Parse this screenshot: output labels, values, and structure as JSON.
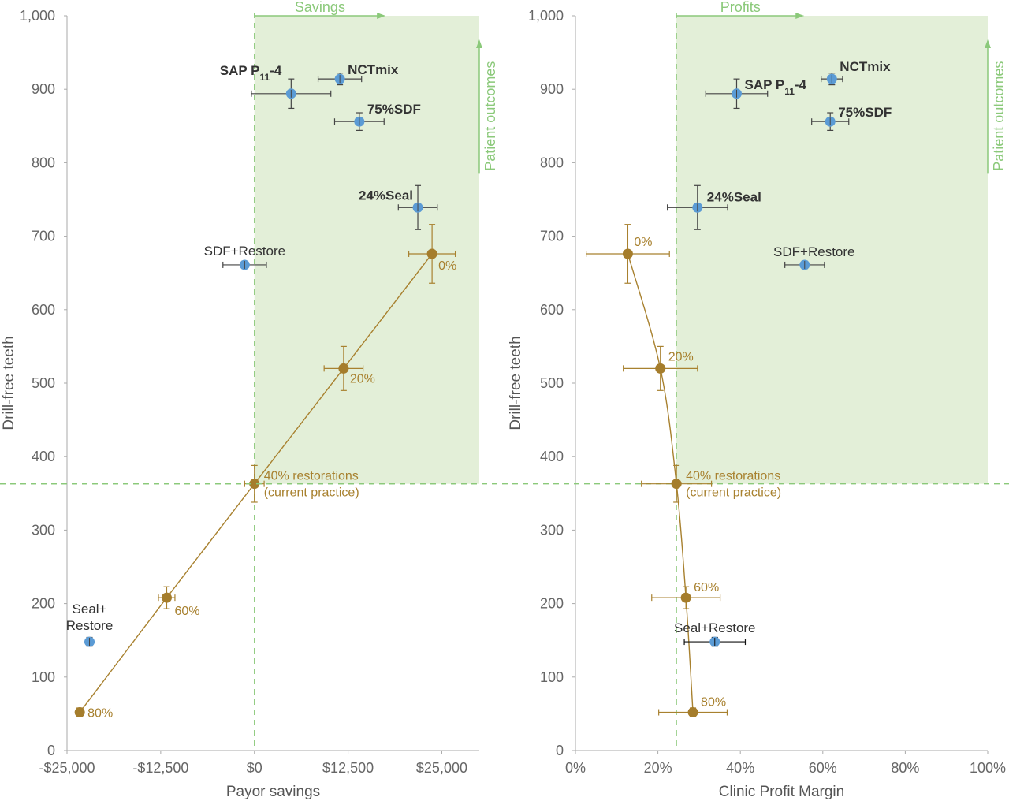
{
  "colors": {
    "region_fill": "#E3EFD8",
    "guide_green": "#8BC97A",
    "gold": "#A8812F",
    "gold_marker": "#A57D2C",
    "blue_marker": "#5B9BD5",
    "errorbar": "#444444",
    "axis": "#AAAAAA"
  },
  "chart_data": [
    {
      "type": "scatter",
      "xlabel": "Payor savings",
      "ylabel": "Drill-free teeth",
      "xlim": [
        -25000,
        30000
      ],
      "ylim": [
        0,
        1000
      ],
      "xticks": [
        {
          "value": -25000,
          "label": "-$25,000"
        },
        {
          "value": -12500,
          "label": "-$12,500"
        },
        {
          "value": 0,
          "label": "$0"
        },
        {
          "value": 12500,
          "label": "$12,500"
        },
        {
          "value": 25000,
          "label": "$25,000"
        }
      ],
      "yticks": [
        {
          "value": 0,
          "label": "0"
        },
        {
          "value": 100,
          "label": "100"
        },
        {
          "value": 200,
          "label": "200"
        },
        {
          "value": 300,
          "label": "300"
        },
        {
          "value": 400,
          "label": "400"
        },
        {
          "value": 500,
          "label": "500"
        },
        {
          "value": 600,
          "label": "600"
        },
        {
          "value": 700,
          "label": "700"
        },
        {
          "value": 800,
          "label": "800"
        },
        {
          "value": 900,
          "label": "900"
        },
        {
          "value": 1000,
          "label": "1,000"
        }
      ],
      "region": {
        "x": [
          0,
          30000
        ],
        "y": [
          363,
          1000
        ]
      },
      "region_x_arrow": {
        "label": "Savings",
        "from": 0,
        "to": 17500,
        "y": 1000
      },
      "region_y_arrow": {
        "label": "Patient outcomes",
        "x": 30000,
        "from": 785,
        "to": 1000
      },
      "reference_lines": {
        "x": 0,
        "y": 363
      },
      "series": [
        {
          "group": "restoration-curve",
          "points": [
            {
              "label": "80%",
              "x": -23300,
              "y": 52,
              "xerr": [
                400,
                400
              ],
              "yerr": [
                6,
                6
              ]
            },
            {
              "label": "60%",
              "x": -11700,
              "y": 208,
              "xerr": [
                1100,
                1100
              ],
              "yerr": [
                15,
                15
              ]
            },
            {
              "label": "40% restorations",
              "label2": "(current practice)",
              "x": 0,
              "y": 363,
              "xerr": [
                1300,
                1300
              ],
              "yerr": [
                25,
                25
              ]
            },
            {
              "label": "20%",
              "x": 11900,
              "y": 520,
              "xerr": [
                2600,
                2600
              ],
              "yerr": [
                30,
                30
              ]
            },
            {
              "label": "0%",
              "x": 23700,
              "y": 676,
              "xerr": [
                3100,
                3100
              ],
              "yerr": [
                40,
                40
              ]
            }
          ]
        },
        {
          "group": "treatments",
          "points": [
            {
              "label": "SAP P",
              "sub": "11",
              "label_suffix": "-4",
              "x": 4900,
              "y": 894,
              "xerr": [
                5300,
                5300
              ],
              "yerr": [
                20,
                20
              ],
              "bold": true
            },
            {
              "label": "NCTmix",
              "x": 11400,
              "y": 914,
              "xerr": [
                2900,
                2900
              ],
              "yerr": [
                8,
                8
              ],
              "bold": true
            },
            {
              "label": "75%SDF",
              "x": 14000,
              "y": 856,
              "xerr": [
                3300,
                3300
              ],
              "yerr": [
                12,
                12
              ],
              "bold": true
            },
            {
              "label": "24%Seal",
              "x": 21800,
              "y": 739,
              "xerr": [
                2600,
                2600
              ],
              "yerr": [
                30,
                30
              ],
              "bold": true
            },
            {
              "label": "SDF+Restore",
              "x": -1300,
              "y": 661,
              "xerr": [
                2900,
                2900
              ],
              "yerr": [
                5,
                5
              ],
              "bold": false
            },
            {
              "label": "Seal+",
              "label2": "Restore",
              "x": -22000,
              "y": 148,
              "xerr": [
                0,
                0
              ],
              "yerr": [
                6,
                6
              ],
              "bold": false
            }
          ]
        }
      ]
    },
    {
      "type": "scatter",
      "xlabel": "Clinic Profit Margin",
      "ylabel": "Drill-free teeth",
      "xlim": [
        0,
        100
      ],
      "ylim": [
        0,
        1000
      ],
      "xticks": [
        {
          "value": 0,
          "label": "0%"
        },
        {
          "value": 20,
          "label": "20%"
        },
        {
          "value": 40,
          "label": "40%"
        },
        {
          "value": 60,
          "label": "60%"
        },
        {
          "value": 80,
          "label": "80%"
        },
        {
          "value": 100,
          "label": "100%"
        }
      ],
      "yticks": [
        {
          "value": 0,
          "label": "0"
        },
        {
          "value": 100,
          "label": "100"
        },
        {
          "value": 200,
          "label": "200"
        },
        {
          "value": 300,
          "label": "300"
        },
        {
          "value": 400,
          "label": "400"
        },
        {
          "value": 500,
          "label": "500"
        },
        {
          "value": 600,
          "label": "600"
        },
        {
          "value": 700,
          "label": "700"
        },
        {
          "value": 800,
          "label": "800"
        },
        {
          "value": 900,
          "label": "900"
        },
        {
          "value": 1000,
          "label": "1,000"
        }
      ],
      "region": {
        "x": [
          24.5,
          100
        ],
        "y": [
          363,
          1000
        ]
      },
      "region_x_arrow": {
        "label": "Profits",
        "from": 24.5,
        "to": 55.5,
        "y": 1000
      },
      "region_y_arrow": {
        "label": "Patient outcomes",
        "x": 100,
        "from": 785,
        "to": 1000
      },
      "reference_lines": {
        "x": 24.5,
        "y": 363
      },
      "series": [
        {
          "group": "restoration-curve",
          "smooth": true,
          "points": [
            {
              "label": "80%",
              "x": 28.5,
              "y": 52,
              "xerr": [
                8.3,
                8.3
              ],
              "yerr": [
                6,
                6
              ]
            },
            {
              "label": "60%",
              "x": 26.8,
              "y": 208,
              "xerr": [
                8.3,
                8.3
              ],
              "yerr": [
                15,
                15
              ]
            },
            {
              "label": "40% restorations",
              "label2": "(current practice)",
              "x": 24.5,
              "y": 363,
              "xerr": [
                8.5,
                8.5
              ],
              "yerr": [
                25,
                25
              ]
            },
            {
              "label": "20%",
              "x": 20.6,
              "y": 520,
              "xerr": [
                9.0,
                9.0
              ],
              "yerr": [
                30,
                30
              ]
            },
            {
              "label": "0%",
              "x": 12.7,
              "y": 676,
              "xerr": [
                10.1,
                10.1
              ],
              "yerr": [
                40,
                40
              ]
            }
          ]
        },
        {
          "group": "treatments",
          "points": [
            {
              "label": "SAP P",
              "sub": "11",
              "label_suffix": "-4",
              "x": 39.1,
              "y": 894,
              "xerr": [
                7.5,
                7.5
              ],
              "yerr": [
                20,
                20
              ],
              "bold": true
            },
            {
              "label": "NCTmix",
              "x": 62.2,
              "y": 914,
              "xerr": [
                2.6,
                2.6
              ],
              "yerr": [
                8,
                8
              ],
              "bold": true
            },
            {
              "label": "75%SDF",
              "x": 61.8,
              "y": 856,
              "xerr": [
                4.5,
                4.5
              ],
              "yerr": [
                12,
                12
              ],
              "bold": true
            },
            {
              "label": "24%Seal",
              "x": 29.6,
              "y": 739,
              "xerr": [
                7.3,
                7.3
              ],
              "yerr": [
                30,
                30
              ],
              "bold": true
            },
            {
              "label": "SDF+Restore",
              "x": 55.6,
              "y": 661,
              "xerr": [
                4.8,
                4.8
              ],
              "yerr": [
                5,
                5
              ],
              "bold": false
            },
            {
              "label": "Seal+Restore",
              "x": 33.8,
              "y": 148,
              "xerr": [
                7.4,
                7.4
              ],
              "yerr": [
                6,
                6
              ],
              "bold": false,
              "errcolor": "#111111"
            }
          ]
        }
      ]
    }
  ]
}
